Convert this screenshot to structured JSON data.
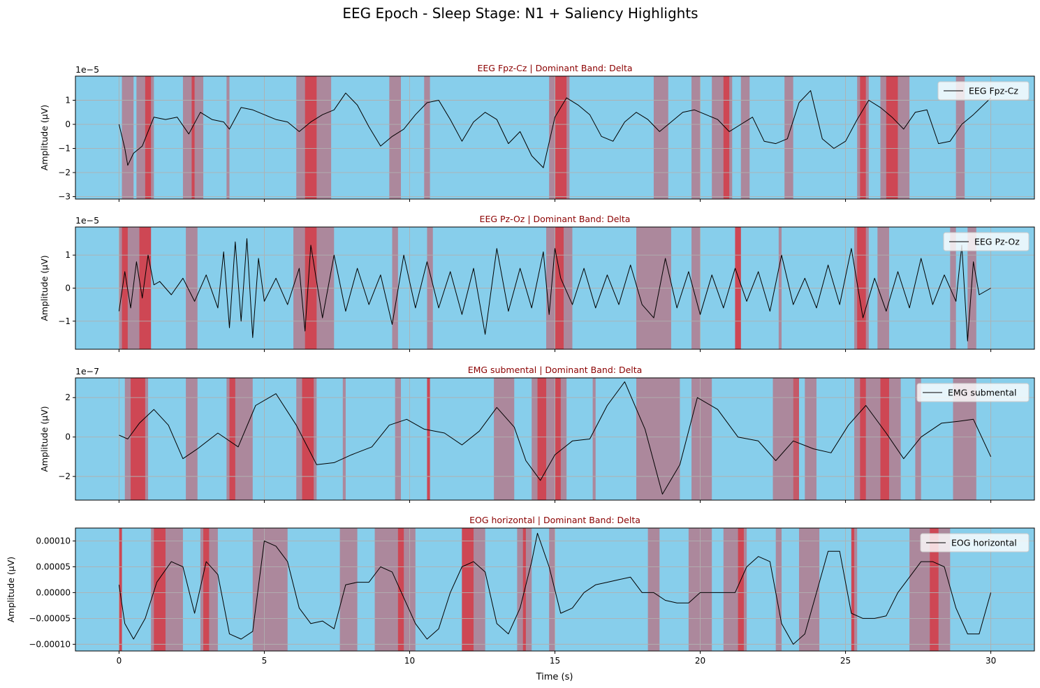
{
  "figure": {
    "title": "EEG Epoch - Sleep Stage: N1 + Saliency Highlights",
    "xlabel": "Time (s)"
  },
  "chart_data": [
    {
      "type": "line",
      "title": "EEG Fpz-Cz | Dominant Band: Delta",
      "ylabel": "Amplitude (µV)",
      "legend": "EEG Fpz-Cz",
      "legend_position": "top-right",
      "offset_label": "1e−5",
      "xlim": [
        -1.5,
        31.5
      ],
      "ylim": [
        -3.1,
        2.0
      ],
      "xticks": [
        0,
        5,
        10,
        15,
        20,
        25,
        30
      ],
      "yticks": [
        -3,
        -2,
        -1,
        0,
        1
      ],
      "ytick_labels": [
        "−3",
        "−2",
        "−1",
        "0",
        "1"
      ],
      "show_xtick_labels": false,
      "grid": true,
      "x": [
        0,
        0.2,
        0.3,
        0.5,
        0.8,
        1.2,
        1.6,
        2.0,
        2.4,
        2.8,
        3.2,
        3.6,
        3.8,
        4.2,
        4.6,
        5.0,
        5.4,
        5.8,
        6.2,
        6.6,
        7.0,
        7.4,
        7.8,
        8.2,
        8.6,
        9.0,
        9.4,
        9.8,
        10.2,
        10.6,
        11.0,
        11.4,
        11.8,
        12.2,
        12.6,
        13.0,
        13.4,
        13.8,
        14.2,
        14.6,
        15.0,
        15.4,
        15.8,
        16.2,
        16.6,
        17.0,
        17.4,
        17.8,
        18.2,
        18.6,
        19.0,
        19.4,
        19.8,
        20.2,
        20.6,
        21.0,
        21.4,
        21.8,
        22.2,
        22.6,
        23.0,
        23.4,
        23.8,
        24.2,
        24.6,
        25.0,
        25.4,
        25.8,
        26.2,
        26.6,
        27.0,
        27.4,
        27.8,
        28.2,
        28.6,
        29.0,
        29.4,
        30.0
      ],
      "series": [
        {
          "values": [
            0,
            -1.0,
            -1.7,
            -1.2,
            -0.9,
            0.3,
            0.2,
            0.3,
            -0.4,
            0.5,
            0.2,
            0.1,
            -0.2,
            0.7,
            0.6,
            0.4,
            0.2,
            0.1,
            -0.3,
            0.1,
            0.4,
            0.6,
            1.3,
            0.8,
            -0.1,
            -0.9,
            -0.5,
            -0.2,
            0.4,
            0.9,
            1.0,
            0.2,
            -0.7,
            0.1,
            0.5,
            0.2,
            -0.8,
            -0.3,
            -1.3,
            -1.8,
            0.3,
            1.1,
            0.8,
            0.4,
            -0.5,
            -0.7,
            0.1,
            0.5,
            0.2,
            -0.3,
            0.1,
            0.5,
            0.6,
            0.4,
            0.2,
            -0.3,
            0.0,
            0.3,
            -0.7,
            -0.8,
            -0.6,
            0.9,
            1.4,
            -0.6,
            -1.0,
            -0.7,
            0.2,
            1.0,
            0.7,
            0.3,
            -0.2,
            0.5,
            0.6,
            -0.8,
            -0.7,
            0.0,
            0.4,
            1.1
          ]
        }
      ],
      "highlights": [
        [
          0.1,
          0.5
        ],
        [
          0.6,
          1.2
        ],
        [
          2.2,
          2.9
        ],
        [
          3.7,
          3.8
        ],
        [
          6.1,
          7.3
        ],
        [
          9.3,
          9.7
        ],
        [
          10.5,
          10.7
        ],
        [
          14.8,
          15.5
        ],
        [
          18.4,
          18.9
        ],
        [
          19.7,
          20.0
        ],
        [
          20.4,
          21.1
        ],
        [
          21.4,
          21.7
        ],
        [
          22.9,
          23.2
        ],
        [
          25.4,
          25.8
        ],
        [
          26.2,
          27.2
        ],
        [
          28.8,
          29.1
        ]
      ],
      "highlights_strong": [
        [
          0.9,
          1.1
        ],
        [
          2.5,
          2.6
        ],
        [
          6.4,
          6.8
        ],
        [
          15.0,
          15.4
        ],
        [
          20.8,
          21.0
        ],
        [
          25.5,
          25.7
        ],
        [
          26.4,
          26.8
        ]
      ]
    },
    {
      "type": "line",
      "title": "EEG Pz-Oz | Dominant Band: Delta",
      "ylabel": "Amplitude (µV)",
      "legend": "EEG Pz-Oz",
      "legend_position": "top-right",
      "offset_label": "1e−5",
      "xlim": [
        -1.5,
        31.5
      ],
      "ylim": [
        -1.85,
        1.85
      ],
      "xticks": [
        0,
        5,
        10,
        15,
        20,
        25,
        30
      ],
      "yticks": [
        -1,
        0,
        1
      ],
      "ytick_labels": [
        "−1",
        "0",
        "1"
      ],
      "show_xtick_labels": false,
      "grid": true,
      "x": [
        0,
        0.2,
        0.4,
        0.6,
        0.8,
        1.0,
        1.2,
        1.4,
        1.8,
        2.2,
        2.6,
        3.0,
        3.4,
        3.6,
        3.8,
        4.0,
        4.2,
        4.4,
        4.6,
        4.8,
        5.0,
        5.4,
        5.8,
        6.2,
        6.4,
        6.6,
        7.0,
        7.4,
        7.8,
        8.2,
        8.6,
        9.0,
        9.4,
        9.8,
        10.2,
        10.6,
        11.0,
        11.4,
        11.8,
        12.2,
        12.6,
        13.0,
        13.4,
        13.8,
        14.2,
        14.6,
        14.8,
        15.0,
        15.2,
        15.6,
        16.0,
        16.4,
        16.8,
        17.2,
        17.6,
        18.0,
        18.4,
        18.8,
        19.2,
        19.6,
        20.0,
        20.4,
        20.8,
        21.2,
        21.6,
        22.0,
        22.4,
        22.8,
        23.2,
        23.6,
        24.0,
        24.4,
        24.8,
        25.2,
        25.6,
        26.0,
        26.4,
        26.8,
        27.2,
        27.6,
        28.0,
        28.4,
        28.8,
        29.0,
        29.2,
        29.4,
        29.6,
        30.0
      ],
      "series": [
        {
          "values": [
            -0.7,
            0.5,
            -0.6,
            0.8,
            -0.3,
            1.0,
            0.1,
            0.2,
            -0.2,
            0.3,
            -0.4,
            0.4,
            -0.6,
            1.1,
            -1.2,
            1.4,
            -1.0,
            1.5,
            -1.5,
            0.9,
            -0.4,
            0.3,
            -0.5,
            0.6,
            -1.3,
            1.3,
            -0.9,
            1.0,
            -0.7,
            0.6,
            -0.5,
            0.4,
            -1.1,
            1.0,
            -0.6,
            0.8,
            -0.6,
            0.5,
            -0.8,
            0.6,
            -1.4,
            1.2,
            -0.7,
            0.6,
            -0.6,
            1.1,
            -0.8,
            1.2,
            0.3,
            -0.5,
            0.6,
            -0.6,
            0.4,
            -0.5,
            0.7,
            -0.5,
            -0.9,
            0.9,
            -0.6,
            0.5,
            -0.8,
            0.4,
            -0.6,
            0.6,
            -0.4,
            0.5,
            -0.7,
            1.0,
            -0.5,
            0.3,
            -0.6,
            0.7,
            -0.5,
            1.2,
            -0.9,
            0.3,
            -0.7,
            0.5,
            -0.6,
            0.9,
            -0.5,
            0.4,
            -0.4,
            1.3,
            -1.6,
            0.8,
            -0.2,
            0.0
          ]
        }
      ],
      "highlights": [
        [
          0.0,
          1.1
        ],
        [
          2.3,
          2.7
        ],
        [
          6.0,
          7.4
        ],
        [
          9.4,
          9.6
        ],
        [
          10.6,
          10.8
        ],
        [
          14.7,
          15.6
        ],
        [
          17.8,
          19.0
        ],
        [
          19.7,
          20.0
        ],
        [
          21.2,
          21.4
        ],
        [
          22.7,
          22.8
        ],
        [
          25.3,
          25.8
        ],
        [
          26.1,
          26.5
        ],
        [
          28.6,
          28.8
        ],
        [
          29.2,
          29.5
        ]
      ],
      "highlights_strong": [
        [
          0.1,
          0.3
        ],
        [
          0.7,
          1.1
        ],
        [
          6.4,
          6.8
        ],
        [
          15.0,
          15.3
        ],
        [
          21.2,
          21.4
        ],
        [
          25.4,
          25.7
        ]
      ]
    },
    {
      "type": "line",
      "title": "EMG submental | Dominant Band: Delta",
      "ylabel": "Amplitude (µV)",
      "legend": "EMG submental",
      "legend_position": "top-right",
      "offset_label": "1e−7",
      "xlim": [
        -1.5,
        31.5
      ],
      "ylim": [
        -3.2,
        3.0
      ],
      "xticks": [
        0,
        5,
        10,
        15,
        20,
        25,
        30
      ],
      "yticks": [
        -2,
        0,
        2
      ],
      "ytick_labels": [
        "−2",
        "0",
        "2"
      ],
      "show_xtick_labels": false,
      "grid": true,
      "x": [
        0,
        0.3,
        0.7,
        1.2,
        1.7,
        2.2,
        2.7,
        3.4,
        4.1,
        4.7,
        5.4,
        6.1,
        6.8,
        7.4,
        8.0,
        8.7,
        9.3,
        9.9,
        10.5,
        11.2,
        11.8,
        12.4,
        13.0,
        13.6,
        14.0,
        14.5,
        15.0,
        15.6,
        16.2,
        16.8,
        17.4,
        18.1,
        18.7,
        19.3,
        19.9,
        20.6,
        21.3,
        22.0,
        22.6,
        23.2,
        23.9,
        24.5,
        25.1,
        25.7,
        26.4,
        27.0,
        27.6,
        28.3,
        28.9,
        29.4,
        30.0
      ],
      "series": [
        {
          "values": [
            0.1,
            -0.1,
            0.7,
            1.4,
            0.6,
            -1.1,
            -0.6,
            0.2,
            -0.5,
            1.6,
            2.2,
            0.6,
            -1.4,
            -1.3,
            -0.9,
            -0.5,
            0.6,
            0.9,
            0.4,
            0.2,
            -0.4,
            0.3,
            1.5,
            0.5,
            -1.2,
            -2.2,
            -0.9,
            -0.2,
            -0.1,
            1.6,
            2.8,
            0.4,
            -2.9,
            -1.4,
            2.0,
            1.4,
            0.0,
            -0.2,
            -1.2,
            -0.2,
            -0.6,
            -0.8,
            0.6,
            1.6,
            0.2,
            -1.1,
            0.0,
            0.7,
            0.8,
            0.9,
            -1.0
          ]
        }
      ],
      "highlights": [
        [
          0.2,
          1.0
        ],
        [
          2.3,
          2.7
        ],
        [
          3.7,
          4.6
        ],
        [
          6.1,
          6.8
        ],
        [
          7.7,
          7.8
        ],
        [
          9.5,
          9.7
        ],
        [
          10.6,
          10.7
        ],
        [
          12.9,
          13.6
        ],
        [
          14.2,
          15.4
        ],
        [
          16.3,
          16.4
        ],
        [
          17.8,
          19.3
        ],
        [
          19.7,
          20.4
        ],
        [
          22.5,
          23.2
        ],
        [
          23.6,
          24.0
        ],
        [
          25.3,
          26.9
        ],
        [
          27.4,
          27.6
        ],
        [
          28.7,
          29.5
        ]
      ],
      "highlights_strong": [
        [
          0.4,
          0.9
        ],
        [
          3.8,
          4.0
        ],
        [
          6.3,
          6.7
        ],
        [
          10.6,
          10.7
        ],
        [
          14.4,
          14.7
        ],
        [
          15.0,
          15.2
        ],
        [
          23.2,
          23.4
        ],
        [
          25.5,
          25.7
        ],
        [
          26.2,
          26.5
        ]
      ]
    },
    {
      "type": "line",
      "title": "EOG horizontal | Dominant Band: Delta",
      "ylabel": "Amplitude (µV)",
      "legend": "EOG horizontal",
      "legend_position": "top-right",
      "offset_label": "",
      "xlim": [
        -1.5,
        31.5
      ],
      "ylim": [
        -0.000113,
        0.000125
      ],
      "xticks": [
        0,
        5,
        10,
        15,
        20,
        25,
        30
      ],
      "xtick_labels": [
        "0",
        "5",
        "10",
        "15",
        "20",
        "25",
        "30"
      ],
      "yticks": [
        -0.0001,
        -5e-05,
        0.0,
        5e-05,
        0.0001
      ],
      "ytick_labels": [
        "−0.00010",
        "−0.00005",
        "0.00000",
        "0.00005",
        "0.00010"
      ],
      "show_xtick_labels": true,
      "grid": true,
      "x": [
        0,
        0.2,
        0.5,
        0.9,
        1.3,
        1.8,
        2.2,
        2.6,
        3.0,
        3.4,
        3.8,
        4.2,
        4.6,
        5.0,
        5.4,
        5.8,
        6.2,
        6.6,
        7.0,
        7.4,
        7.8,
        8.2,
        8.6,
        9.0,
        9.4,
        9.8,
        10.2,
        10.6,
        11.0,
        11.4,
        11.8,
        12.2,
        12.6,
        13.0,
        13.4,
        13.8,
        14.2,
        14.4,
        14.8,
        15.2,
        15.6,
        16.0,
        16.4,
        16.8,
        17.2,
        17.6,
        18.0,
        18.4,
        18.8,
        19.2,
        19.6,
        20.0,
        20.4,
        20.8,
        21.2,
        21.6,
        22.0,
        22.4,
        22.8,
        23.2,
        23.6,
        24.0,
        24.4,
        24.8,
        25.2,
        25.6,
        26.0,
        26.4,
        26.8,
        27.2,
        27.6,
        28.0,
        28.4,
        28.8,
        29.2,
        29.6,
        30.0
      ],
      "series": [
        {
          "values": [
            1.5e-05,
            -6e-05,
            -9e-05,
            -5e-05,
            2e-05,
            6e-05,
            5e-05,
            -4e-05,
            6e-05,
            3.5e-05,
            -8e-05,
            -9e-05,
            -7.5e-05,
            0.0001,
            9e-05,
            6e-05,
            -3e-05,
            -6e-05,
            -5.5e-05,
            -7e-05,
            1.5e-05,
            2e-05,
            2e-05,
            5e-05,
            4e-05,
            -1e-05,
            -6e-05,
            -9e-05,
            -7e-05,
            0.0,
            5e-05,
            6e-05,
            4e-05,
            -6e-05,
            -8e-05,
            -3e-05,
            6e-05,
            0.000115,
            5e-05,
            -4e-05,
            -3e-05,
            0.0,
            1.5e-05,
            2e-05,
            2.5e-05,
            3e-05,
            0.0,
            0.0,
            -1.5e-05,
            -2e-05,
            -2e-05,
            0.0,
            0.0,
            0.0,
            0.0,
            5e-05,
            7e-05,
            6e-05,
            -6e-05,
            -0.0001,
            -8e-05,
            0.0,
            8e-05,
            8e-05,
            -4e-05,
            -5e-05,
            -5e-05,
            -4.5e-05,
            0.0,
            3e-05,
            6e-05,
            6e-05,
            5e-05,
            -3e-05,
            -8e-05,
            -8e-05,
            0.0
          ]
        }
      ],
      "highlights": [
        [
          0.0,
          0.1
        ],
        [
          1.1,
          2.2
        ],
        [
          2.8,
          3.4
        ],
        [
          4.6,
          5.8
        ],
        [
          7.6,
          8.2
        ],
        [
          8.8,
          10.2
        ],
        [
          11.8,
          12.6
        ],
        [
          13.7,
          14.2
        ],
        [
          14.8,
          15.0
        ],
        [
          18.2,
          18.6
        ],
        [
          19.6,
          20.4
        ],
        [
          20.8,
          21.6
        ],
        [
          22.6,
          22.8
        ],
        [
          23.4,
          24.1
        ],
        [
          25.2,
          25.4
        ],
        [
          27.2,
          28.6
        ]
      ],
      "highlights_strong": [
        [
          0.0,
          0.1
        ],
        [
          1.2,
          1.6
        ],
        [
          2.9,
          3.1
        ],
        [
          9.6,
          9.8
        ],
        [
          11.8,
          12.2
        ],
        [
          13.9,
          14.0
        ],
        [
          21.3,
          21.5
        ],
        [
          25.2,
          25.3
        ],
        [
          27.9,
          28.2
        ]
      ]
    }
  ]
}
